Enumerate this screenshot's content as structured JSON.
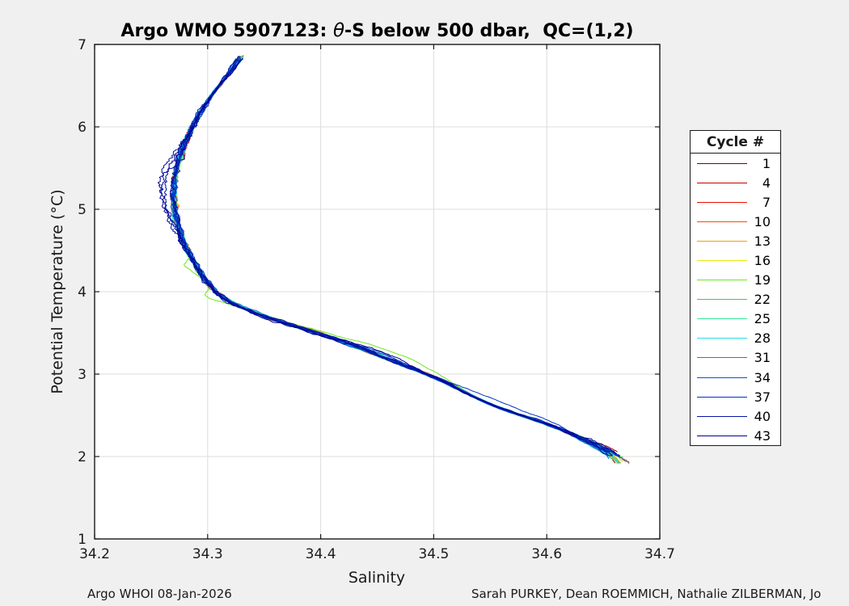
{
  "figure": {
    "background": "#f0f0f0",
    "plot_background": "#ffffff",
    "frame_color": "#1a1a1a",
    "grid_color": "#dcdcdc",
    "text_color": "#1a1a1a"
  },
  "title": {
    "prefix": "Argo WMO 5907123: ",
    "theta_symbol": "θ",
    "suffix": "-S below 500 dbar,  QC=(1,2)"
  },
  "axes": {
    "x": {
      "label": "Salinity",
      "min": 34.2,
      "max": 34.7,
      "ticks": [
        34.2,
        34.3,
        34.4,
        34.5,
        34.6,
        34.7
      ],
      "tick_labels": [
        "34.2",
        "34.3",
        "34.4",
        "34.5",
        "34.6",
        "34.7"
      ]
    },
    "y": {
      "label": "Potential Temperature (°C)",
      "min": 1,
      "max": 7,
      "ticks": [
        1,
        2,
        3,
        4,
        5,
        6,
        7
      ],
      "tick_labels": [
        "1",
        "2",
        "3",
        "4",
        "5",
        "6",
        "7"
      ]
    }
  },
  "legend": {
    "title": "Cycle #",
    "entries": [
      {
        "label": "1",
        "color": "#800000"
      },
      {
        "label": "4",
        "color": "#c80000"
      },
      {
        "label": "7",
        "color": "#ee0f00"
      },
      {
        "label": "10",
        "color": "#fa4d00"
      },
      {
        "label": "13",
        "color": "#f99a05"
      },
      {
        "label": "16",
        "color": "#ece713"
      },
      {
        "label": "19",
        "color": "#70e41e"
      },
      {
        "label": "22",
        "color": "#30d24a"
      },
      {
        "label": "25",
        "color": "#2ee493"
      },
      {
        "label": "28",
        "color": "#2addef"
      },
      {
        "label": "31",
        "color": "#0a87e8"
      },
      {
        "label": "34",
        "color": "#0553d8"
      },
      {
        "label": "37",
        "color": "#0333c2"
      },
      {
        "label": "40",
        "color": "#0113a8"
      },
      {
        "label": "43",
        "color": "#00008f"
      }
    ]
  },
  "footer": {
    "left": "Argo WHOI 08-Jan-2026",
    "right": "Sarah PURKEY, Dean ROEMMICH, Nathalie ZILBERMAN, Jo"
  },
  "chart_data": {
    "type": "line",
    "title": "Argo WMO 5907123: θ-S below 500 dbar, QC=(1,2)",
    "xlabel": "Salinity",
    "ylabel": "Potential Temperature (°C)",
    "xlim": [
      34.2,
      34.7
    ],
    "ylim": [
      1,
      7
    ],
    "grid": true,
    "legend_position": "right-outside",
    "cycles_plotted": 43,
    "series_note": "43 Argo float profile cycles, colored dark-red (cycle 1) to navy (cycle 43); legend labels every 3rd cycle; all cycles overlie a common theta-S curve",
    "base_curve": {
      "theta": [
        6.85,
        6.6,
        6.3,
        6.0,
        5.7,
        5.4,
        5.1,
        4.85,
        4.6,
        4.35,
        4.12,
        3.93,
        3.8,
        3.67,
        3.55,
        3.4,
        3.22,
        3.06,
        2.9,
        2.72,
        2.57,
        2.47,
        2.38,
        2.26,
        2.13,
        2.02,
        1.93
      ],
      "salinity": [
        34.33,
        34.316,
        34.299,
        34.286,
        34.277,
        34.271,
        34.27,
        34.272,
        34.279,
        34.288,
        34.299,
        34.312,
        34.33,
        34.356,
        34.385,
        34.42,
        34.452,
        34.482,
        34.512,
        34.536,
        34.56,
        34.584,
        34.604,
        34.625,
        34.645,
        34.66,
        34.668
      ]
    },
    "spread_envelope": [
      [
        6.9,
        0.35
      ],
      [
        6.4,
        0.4
      ],
      [
        5.95,
        1.0
      ],
      [
        4.55,
        1.0
      ],
      [
        3.8,
        0.55
      ],
      [
        3.0,
        0.45
      ],
      [
        2.65,
        0.15
      ],
      [
        2.3,
        0.45
      ],
      [
        1.88,
        0.8
      ]
    ],
    "anomalies": [
      {
        "cycle": 19,
        "type": "spike",
        "theta_range": [
          4.19,
          4.35
        ],
        "dS": -0.029
      },
      {
        "cycle": 19,
        "type": "spike",
        "theta_range": [
          3.83,
          3.97
        ],
        "dS": -0.045
      },
      {
        "cycle": 19,
        "type": "bump",
        "theta_range": [
          2.75,
          3.7
        ],
        "dS": 0.02
      },
      {
        "cycle": 34,
        "type": "bump",
        "theta_range": [
          3.0,
          3.45
        ],
        "dS": 0.014
      },
      {
        "cycle": 37,
        "type": "bump",
        "theta_range": [
          2.15,
          3.1
        ],
        "dS": 0.014
      },
      {
        "cycle": 37,
        "type": "bump",
        "theta_range": [
          3.05,
          3.4
        ],
        "dS": 0.01
      },
      {
        "cycle": 40,
        "type": "wiggle",
        "theta_range": [
          4.4,
          6.0
        ],
        "dS": -0.011
      },
      {
        "cycle": 41,
        "type": "wiggle",
        "theta_range": [
          4.6,
          5.8
        ],
        "dS": -0.009
      },
      {
        "cycle": 43,
        "type": "wiggle",
        "theta_range": [
          4.5,
          5.95
        ],
        "dS": -0.013
      },
      {
        "cycle": 43,
        "type": "bump",
        "theta_range": [
          2.95,
          3.45
        ],
        "dS": 0.01
      }
    ]
  }
}
